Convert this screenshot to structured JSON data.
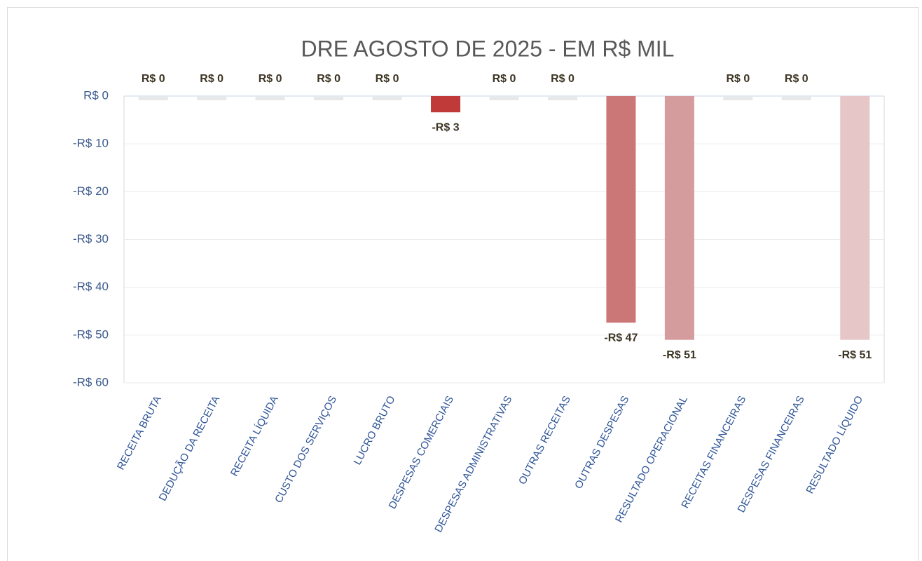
{
  "chart_data": {
    "type": "bar",
    "title": "DRE AGOSTO DE 2025 - EM R$ MIL",
    "categories": [
      "RECEITA BRUTA",
      "DEDUÇÃO DA RECEITA",
      "RECEITA LÍQUIDA",
      "CUSTO DOS SERVIÇOS",
      "LUCRO BRUTO",
      "DESPESAS COMERCIAIS",
      "DESPESAS ADMINISTRATIVAS",
      "OUTRAS RECEITAS",
      "OUTRAS DESPESAS",
      "RESULTADO OPERACIONAL",
      "RECEITAS FINANCEIRAS",
      "DESPESAS FINANCEIRAS",
      "RESULTADO LÍQUIDO"
    ],
    "values": [
      0,
      0,
      0,
      0,
      0,
      -3.4,
      0,
      0,
      -47.4,
      -51,
      0,
      0,
      -51
    ],
    "value_labels": [
      "R$ 0",
      "R$ 0",
      "R$ 0",
      "R$ 0",
      "R$ 0",
      "-R$ 3",
      "R$ 0",
      "R$ 0",
      "-R$ 47",
      "-R$ 51",
      "R$ 0",
      "R$ 0",
      "-R$ 51"
    ],
    "colors": [
      "#e8e8e8",
      "#e8e8e8",
      "#e8e8e8",
      "#e8e8e8",
      "#e8e8e8",
      "#c03a3a",
      "#e8e8e8",
      "#e8e8e8",
      "#cc7777",
      "#d49c9c",
      "#e8e8e8",
      "#e8e8e8",
      "#e6c6c6"
    ],
    "ylim": [
      -60,
      0
    ],
    "yticks": [
      {
        "value": 0,
        "label": "R$ 0"
      },
      {
        "value": -10,
        "label": "-R$ 10"
      },
      {
        "value": -20,
        "label": "-R$ 20"
      },
      {
        "value": -30,
        "label": "-R$ 30"
      },
      {
        "value": -40,
        "label": "-R$ 40"
      },
      {
        "value": -50,
        "label": "-R$ 50"
      },
      {
        "value": -60,
        "label": "-R$ 60"
      }
    ],
    "grid": true
  }
}
